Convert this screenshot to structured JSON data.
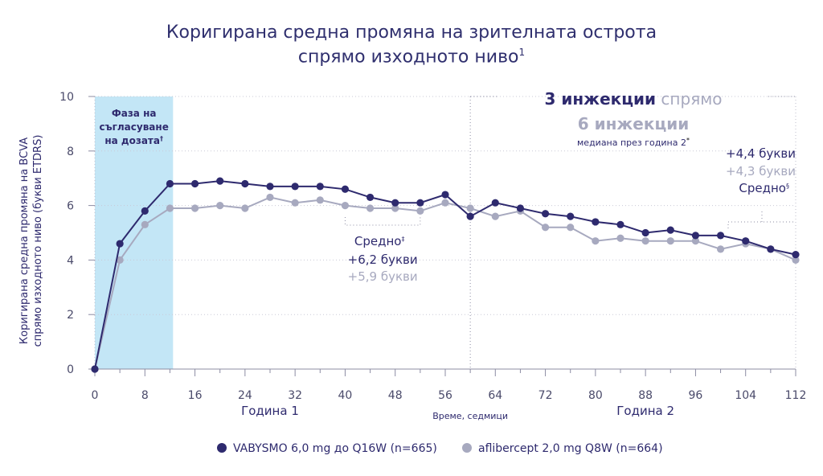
{
  "chart_data": {
    "type": "line",
    "title_line1": "Коригирана средна промяна на зрителната острота",
    "title_line2": "спрямо изходното ниво",
    "title_sup": "1",
    "ylabel_line1": "Коригирана средна промяна на BCVA",
    "ylabel_line2": "спрямо изходното ниво (букви ETDRS)",
    "xlabel": "Време, седмици",
    "ylim": [
      0,
      10
    ],
    "xlim": [
      0,
      112
    ],
    "y_ticks": [
      0,
      2,
      4,
      6,
      8,
      10
    ],
    "x_ticks": [
      0,
      8,
      16,
      24,
      32,
      40,
      48,
      56,
      64,
      72,
      80,
      88,
      96,
      104,
      112
    ],
    "year_labels": [
      {
        "text": "Година 1",
        "x": 28
      },
      {
        "text": "Година 2",
        "x": 88
      }
    ],
    "series": [
      {
        "name": "VABYSMO 6,0 mg до Q16W (n=665)",
        "color": "#2e2a6e",
        "x": [
          0,
          4,
          8,
          12,
          16,
          20,
          24,
          28,
          32,
          36,
          40,
          44,
          48,
          52,
          56,
          60,
          64,
          68,
          72,
          76,
          80,
          84,
          88,
          92,
          96,
          100,
          104,
          108,
          112
        ],
        "values": [
          0,
          4.6,
          5.8,
          6.8,
          6.8,
          6.9,
          6.8,
          6.7,
          6.7,
          6.7,
          6.6,
          6.3,
          6.1,
          6.1,
          6.4,
          5.6,
          6.1,
          5.9,
          5.7,
          5.6,
          5.4,
          5.3,
          5.0,
          5.1,
          4.9,
          4.9,
          4.7,
          4.4,
          4.2
        ]
      },
      {
        "name": "aflibercept 2,0 mg Q8W (n=664)",
        "color": "#a7a9bf",
        "x": [
          0,
          4,
          8,
          12,
          16,
          20,
          24,
          28,
          32,
          36,
          40,
          44,
          48,
          52,
          56,
          60,
          64,
          68,
          72,
          76,
          80,
          84,
          88,
          92,
          96,
          100,
          104,
          108,
          112
        ],
        "values": [
          0,
          4.0,
          5.3,
          5.9,
          5.9,
          6.0,
          5.9,
          6.3,
          6.1,
          6.2,
          6.0,
          5.9,
          5.9,
          5.8,
          6.1,
          5.9,
          5.6,
          5.8,
          5.2,
          5.2,
          4.7,
          4.8,
          4.7,
          4.7,
          4.7,
          4.4,
          4.6,
          4.4,
          4.0
        ]
      }
    ],
    "shaded_region": {
      "x_range": [
        0,
        12.5
      ],
      "label_lines": [
        "Фаза на",
        "съгласуване",
        "на дозата"
      ],
      "label_sup": "†",
      "color": "#c3e6f6"
    },
    "year_divider_x": 60,
    "annotation_year1": {
      "label": "Средно",
      "label_sup": "‡",
      "value1": "+6,2 букви",
      "value2": "+5,9 букви"
    },
    "annotation_year2_header": {
      "line1_bold": "3 инжекции",
      "line1_rest": " спрямо",
      "line2_bold": "6 инжекции",
      "line3": "медиана през година 2",
      "line3_sup": "*"
    },
    "annotation_year2": {
      "value1": "+4,4 букви",
      "value2": "+4,3 букви",
      "label": "Средно",
      "label_sup": "§"
    },
    "legend": {
      "placement": "bottom"
    }
  }
}
